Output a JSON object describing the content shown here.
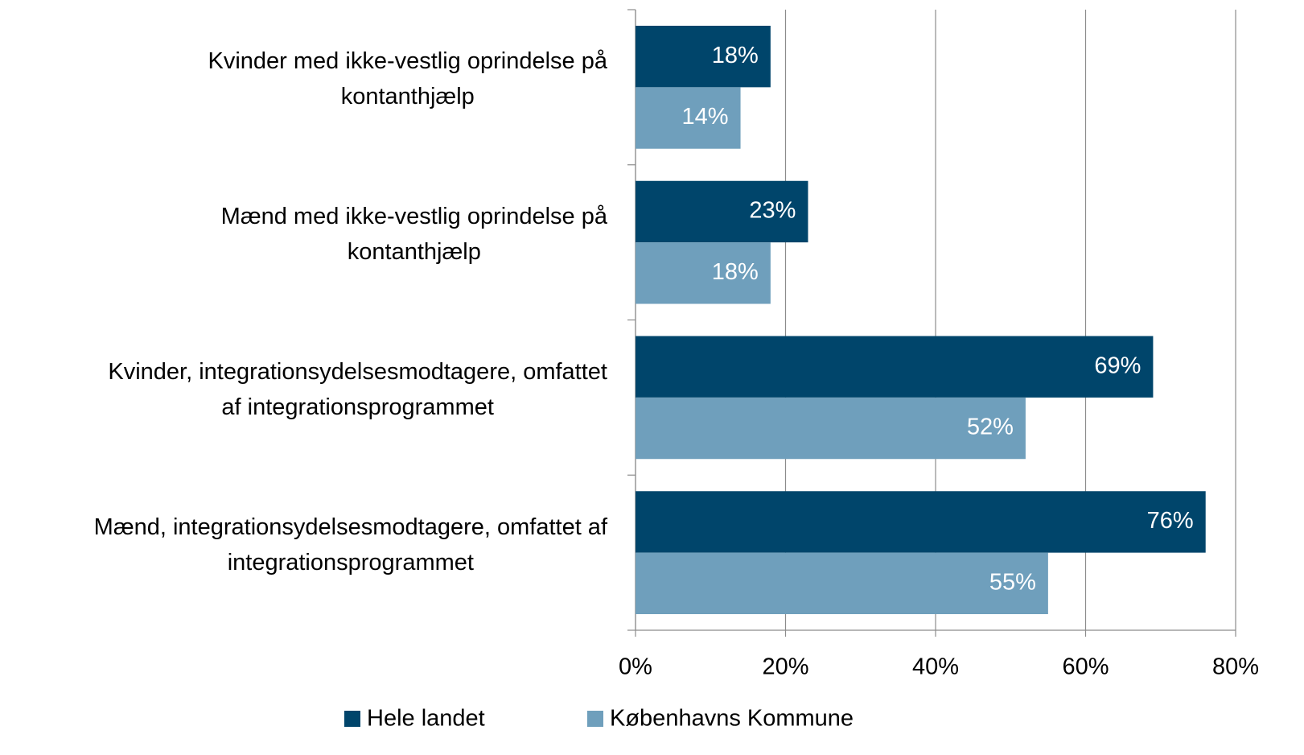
{
  "chart_data": {
    "type": "barh",
    "categories": [
      "Kvinder med ikke-vestlig oprindelse på\nkontanthjælp",
      "Mænd med ikke-vestlig oprindelse på\nkontanthjælp",
      "Kvinder, integrationsydelsesmodtagere, omfattet\naf integrationsprogrammet",
      "Mænd, integrationsydelsesmodtagere, omfattet af\nintegrationsprogrammet"
    ],
    "series": [
      {
        "name": "Hele landet",
        "color": "#00456b",
        "values": [
          18,
          23,
          69,
          76
        ],
        "value_labels": [
          "18%",
          "23%",
          "69%",
          "76%"
        ]
      },
      {
        "name": "Københavns Kommune",
        "color": "#6f9fbc",
        "values": [
          14,
          18,
          52,
          55
        ],
        "value_labels": [
          "14%",
          "18%",
          "52%",
          "55%"
        ]
      }
    ],
    "xlim": [
      0,
      80
    ],
    "xticks": [
      {
        "value": 0,
        "label": "0%"
      },
      {
        "value": 20,
        "label": "20%"
      },
      {
        "value": 40,
        "label": "40%"
      },
      {
        "value": 60,
        "label": "60%"
      },
      {
        "value": 80,
        "label": "80%"
      }
    ],
    "grid": true,
    "legend": "bottom"
  }
}
